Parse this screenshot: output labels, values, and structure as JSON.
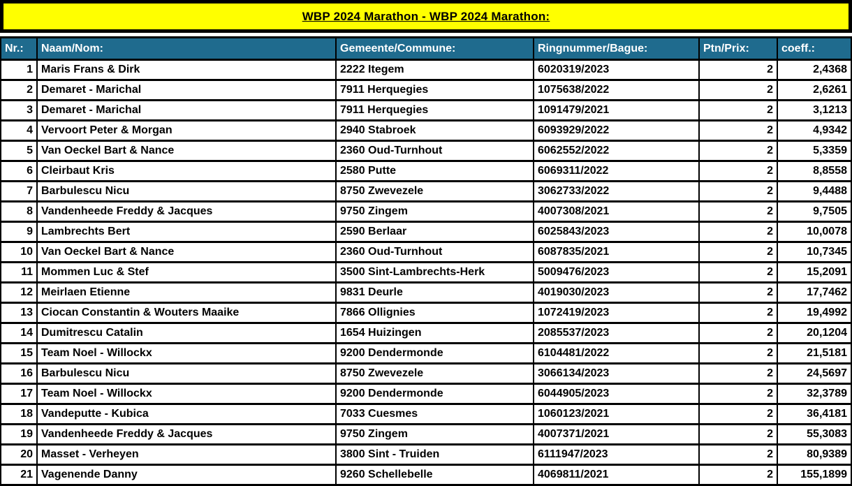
{
  "title": "WBP 2024 Marathon - WBP 2024 Marathon:",
  "colors": {
    "title_background": "#FFFF00",
    "header_background": "#1F6B8E",
    "header_text": "#FFFFFF",
    "border": "#000000",
    "body_text": "#000000"
  },
  "table": {
    "columns": [
      {
        "key": "nr",
        "label": "Nr.:"
      },
      {
        "key": "name",
        "label": "Naam/Nom:"
      },
      {
        "key": "commune",
        "label": "Gemeente/Commune:"
      },
      {
        "key": "ring",
        "label": "Ringnummer/Bague:"
      },
      {
        "key": "ptn",
        "label": "Ptn/Prix:"
      },
      {
        "key": "coeff",
        "label": "coeff.:"
      }
    ],
    "rows": [
      {
        "nr": "1",
        "name": "Maris Frans & Dirk",
        "commune": "2222 Itegem",
        "ring": "6020319/2023",
        "ptn": "2",
        "coeff": "2,4368"
      },
      {
        "nr": "2",
        "name": "Demaret - Marichal",
        "commune": "7911 Herquegies",
        "ring": "1075638/2022",
        "ptn": "2",
        "coeff": "2,6261"
      },
      {
        "nr": "3",
        "name": "Demaret - Marichal",
        "commune": "7911 Herquegies",
        "ring": "1091479/2021",
        "ptn": "2",
        "coeff": "3,1213"
      },
      {
        "nr": "4",
        "name": "Vervoort Peter & Morgan",
        "commune": "2940 Stabroek",
        "ring": "6093929/2022",
        "ptn": "2",
        "coeff": "4,9342"
      },
      {
        "nr": "5",
        "name": "Van Oeckel Bart & Nance",
        "commune": "2360 Oud-Turnhout",
        "ring": "6062552/2022",
        "ptn": "2",
        "coeff": "5,3359"
      },
      {
        "nr": "6",
        "name": "Cleirbaut Kris",
        "commune": "2580 Putte",
        "ring": "6069311/2022",
        "ptn": "2",
        "coeff": "8,8558"
      },
      {
        "nr": "7",
        "name": "Barbulescu Nicu",
        "commune": "8750 Zwevezele",
        "ring": "3062733/2022",
        "ptn": "2",
        "coeff": "9,4488"
      },
      {
        "nr": "8",
        "name": "Vandenheede Freddy & Jacques",
        "commune": "9750 Zingem",
        "ring": "4007308/2021",
        "ptn": "2",
        "coeff": "9,7505"
      },
      {
        "nr": "9",
        "name": "Lambrechts Bert",
        "commune": "2590 Berlaar",
        "ring": "6025843/2023",
        "ptn": "2",
        "coeff": "10,0078"
      },
      {
        "nr": "10",
        "name": "Van Oeckel Bart & Nance",
        "commune": "2360 Oud-Turnhout",
        "ring": "6087835/2021",
        "ptn": "2",
        "coeff": "10,7345"
      },
      {
        "nr": "11",
        "name": "Mommen Luc & Stef",
        "commune": "3500 Sint-Lambrechts-Herk",
        "ring": "5009476/2023",
        "ptn": "2",
        "coeff": "15,2091"
      },
      {
        "nr": "12",
        "name": "Meirlaen Etienne",
        "commune": "9831 Deurle",
        "ring": "4019030/2023",
        "ptn": "2",
        "coeff": "17,7462"
      },
      {
        "nr": "13",
        "name": "Ciocan Constantin & Wouters Maaike",
        "commune": "7866 Ollignies",
        "ring": "1072419/2023",
        "ptn": "2",
        "coeff": "19,4992"
      },
      {
        "nr": "14",
        "name": "Dumitrescu Catalin",
        "commune": "1654 Huizingen",
        "ring": "2085537/2023",
        "ptn": "2",
        "coeff": "20,1204"
      },
      {
        "nr": "15",
        "name": "Team Noel - Willockx",
        "commune": "9200 Dendermonde",
        "ring": "6104481/2022",
        "ptn": "2",
        "coeff": "21,5181"
      },
      {
        "nr": "16",
        "name": "Barbulescu Nicu",
        "commune": "8750 Zwevezele",
        "ring": "3066134/2023",
        "ptn": "2",
        "coeff": "24,5697"
      },
      {
        "nr": "17",
        "name": "Team Noel - Willockx",
        "commune": "9200 Dendermonde",
        "ring": "6044905/2023",
        "ptn": "2",
        "coeff": "32,3789"
      },
      {
        "nr": "18",
        "name": "Vandeputte - Kubica",
        "commune": "7033 Cuesmes",
        "ring": "1060123/2021",
        "ptn": "2",
        "coeff": "36,4181"
      },
      {
        "nr": "19",
        "name": "Vandenheede Freddy & Jacques",
        "commune": "9750 Zingem",
        "ring": "4007371/2021",
        "ptn": "2",
        "coeff": "55,3083"
      },
      {
        "nr": "20",
        "name": "Masset - Verheyen",
        "commune": "3800 Sint - Truiden",
        "ring": "6111947/2023",
        "ptn": "2",
        "coeff": "80,9389"
      },
      {
        "nr": "21",
        "name": "Vagenende Danny",
        "commune": "9260 Schellebelle",
        "ring": "4069811/2021",
        "ptn": "2",
        "coeff": "155,1899"
      }
    ]
  }
}
